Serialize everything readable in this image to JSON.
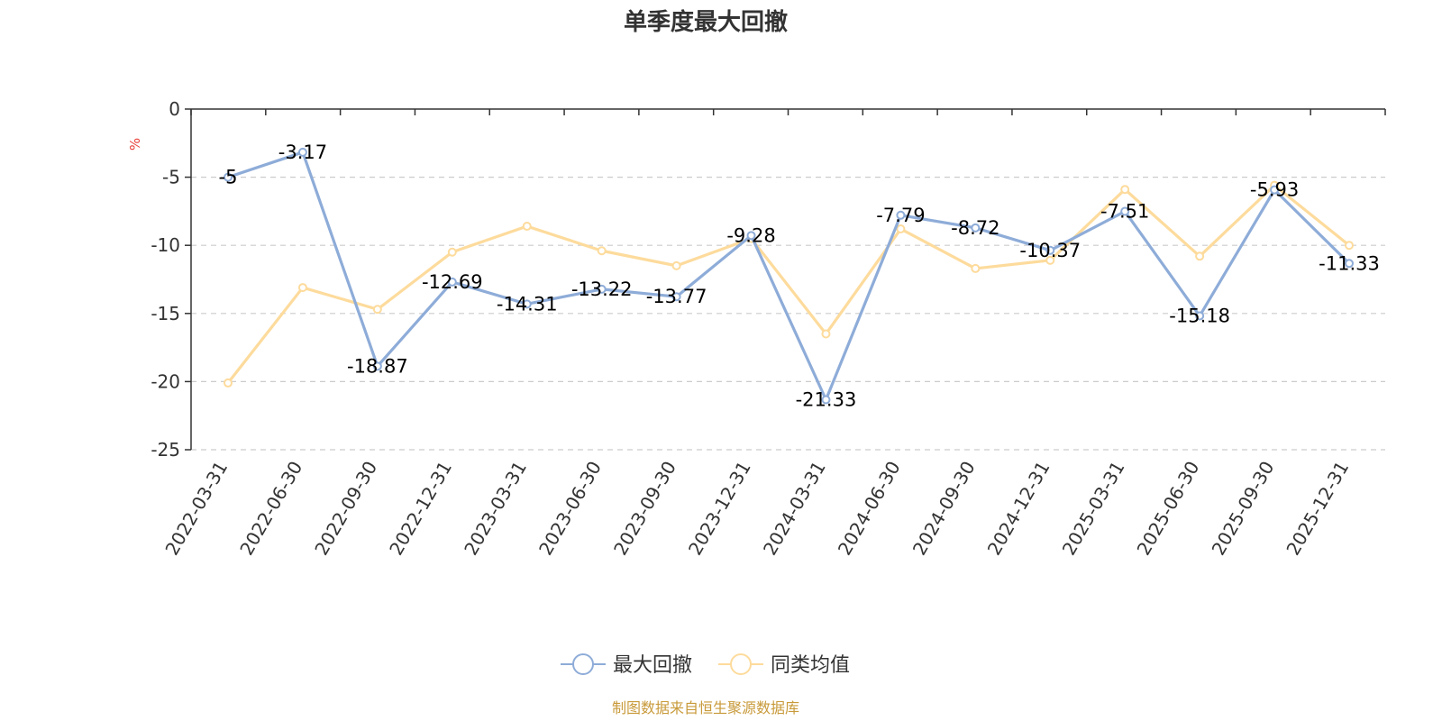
{
  "chart_data": {
    "type": "line",
    "title": "单季度最大回撤",
    "ylabel": "%",
    "ylim": [
      -25,
      0
    ],
    "yticks": [
      0,
      -5,
      -10,
      -15,
      -20,
      -25
    ],
    "grid": true,
    "legend_position": "bottom",
    "categories": [
      "2022-03-31",
      "2022-06-30",
      "2022-09-30",
      "2022-12-31",
      "2023-03-31",
      "2023-06-30",
      "2023-09-30",
      "2023-12-31",
      "2024-03-31",
      "2024-06-30",
      "2024-09-30",
      "2024-12-31",
      "2025-03-31",
      "2025-06-30",
      "2025-09-30",
      "2025-12-31"
    ],
    "series": [
      {
        "name": "最大回撤",
        "color": "#8eacd8",
        "show_labels": true,
        "values": [
          -5,
          -3.17,
          -18.87,
          -12.69,
          -14.31,
          -13.22,
          -13.77,
          -9.28,
          -21.33,
          -7.79,
          -8.72,
          -10.37,
          -7.51,
          -15.18,
          -5.93,
          -11.33
        ]
      },
      {
        "name": "同类均值",
        "color": "#fddb9c",
        "show_labels": false,
        "values": [
          -20.1,
          -13.1,
          -14.7,
          -10.5,
          -8.6,
          -10.4,
          -11.5,
          -9.5,
          -16.5,
          -8.8,
          -11.7,
          -11.1,
          -5.9,
          -10.8,
          -5.6,
          -10.0
        ]
      }
    ]
  },
  "source_note": "制图数据来自恒生聚源数据库",
  "colors": {
    "axis": "#333333",
    "grid": "#cccccc",
    "unit": "#e8423a",
    "source": "#c89a3a"
  }
}
